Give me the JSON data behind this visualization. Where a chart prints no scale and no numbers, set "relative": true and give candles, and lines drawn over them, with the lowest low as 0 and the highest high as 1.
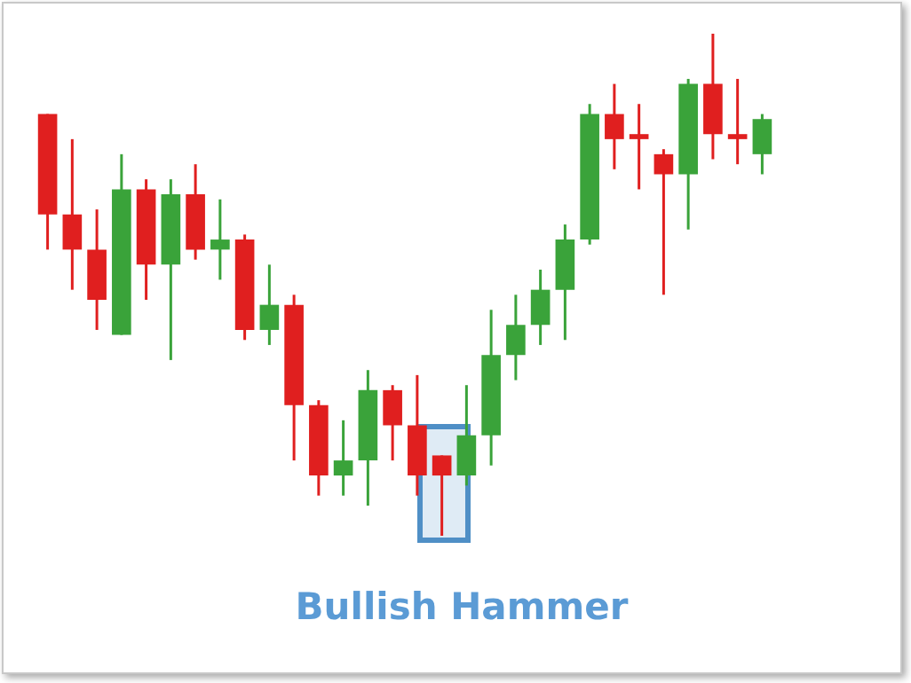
{
  "chart_data": {
    "type": "candlestick",
    "title": "Bullish Hammer",
    "relative": true,
    "categories": [
      null,
      null,
      null,
      null,
      null,
      null,
      null,
      null,
      null,
      null,
      null,
      null,
      null,
      null,
      null,
      null,
      null,
      null,
      null,
      null,
      null,
      null,
      null,
      null,
      null,
      null,
      null,
      null,
      null,
      null
    ],
    "ohlc": [
      [
        0.84,
        0.84,
        0.57,
        0.64
      ],
      [
        0.64,
        0.79,
        0.49,
        0.57
      ],
      [
        0.57,
        0.65,
        0.41,
        0.47
      ],
      [
        0.4,
        0.76,
        0.4,
        0.69
      ],
      [
        0.69,
        0.71,
        0.47,
        0.54
      ],
      [
        0.54,
        0.71,
        0.35,
        0.68
      ],
      [
        0.68,
        0.74,
        0.55,
        0.57
      ],
      [
        0.57,
        0.67,
        0.51,
        0.59
      ],
      [
        0.59,
        0.6,
        0.39,
        0.41
      ],
      [
        0.41,
        0.54,
        0.38,
        0.46
      ],
      [
        0.46,
        0.48,
        0.15,
        0.26
      ],
      [
        0.26,
        0.27,
        0.08,
        0.12
      ],
      [
        0.12,
        0.23,
        0.08,
        0.15
      ],
      [
        0.15,
        0.33,
        0.06,
        0.29
      ],
      [
        0.29,
        0.3,
        0.15,
        0.22
      ],
      [
        0.22,
        0.32,
        0.08,
        0.12
      ],
      [
        0.16,
        0.16,
        0,
        0.12
      ],
      [
        0.12,
        0.3,
        0.1,
        0.2
      ],
      [
        0.2,
        0.45,
        0.14,
        0.36
      ],
      [
        0.36,
        0.48,
        0.31,
        0.42
      ],
      [
        0.42,
        0.53,
        0.38,
        0.49
      ],
      [
        0.49,
        0.62,
        0.39,
        0.59
      ],
      [
        0.59,
        0.86,
        0.58,
        0.84
      ],
      [
        0.84,
        0.9,
        0.73,
        0.79
      ],
      [
        0.8,
        0.86,
        0.69,
        0.79
      ],
      [
        0.76,
        0.77,
        0.48,
        0.72
      ],
      [
        0.72,
        0.91,
        0.61,
        0.9
      ],
      [
        0.9,
        1,
        0.75,
        0.8
      ],
      [
        0.8,
        0.91,
        0.74,
        0.79
      ],
      [
        0.76,
        0.84,
        0.72,
        0.83
      ]
    ],
    "colors": [
      "#e01f1f",
      "#e01f1f",
      "#e01f1f",
      "#3aa33a",
      "#e01f1f",
      "#3aa33a",
      "#e01f1f",
      "#3aa33a",
      "#e01f1f",
      "#3aa33a",
      "#e01f1f",
      "#e01f1f",
      "#3aa33a",
      "#3aa33a",
      "#e01f1f",
      "#e01f1f",
      "#e01f1f",
      "#3aa33a",
      "#3aa33a",
      "#3aa33a",
      "#3aa33a",
      "#3aa33a",
      "#3aa33a",
      "#e01f1f",
      "#e01f1f",
      "#e01f1f",
      "#3aa33a",
      "#e01f1f",
      "#e01f1f",
      "#3aa33a"
    ]
  }
}
